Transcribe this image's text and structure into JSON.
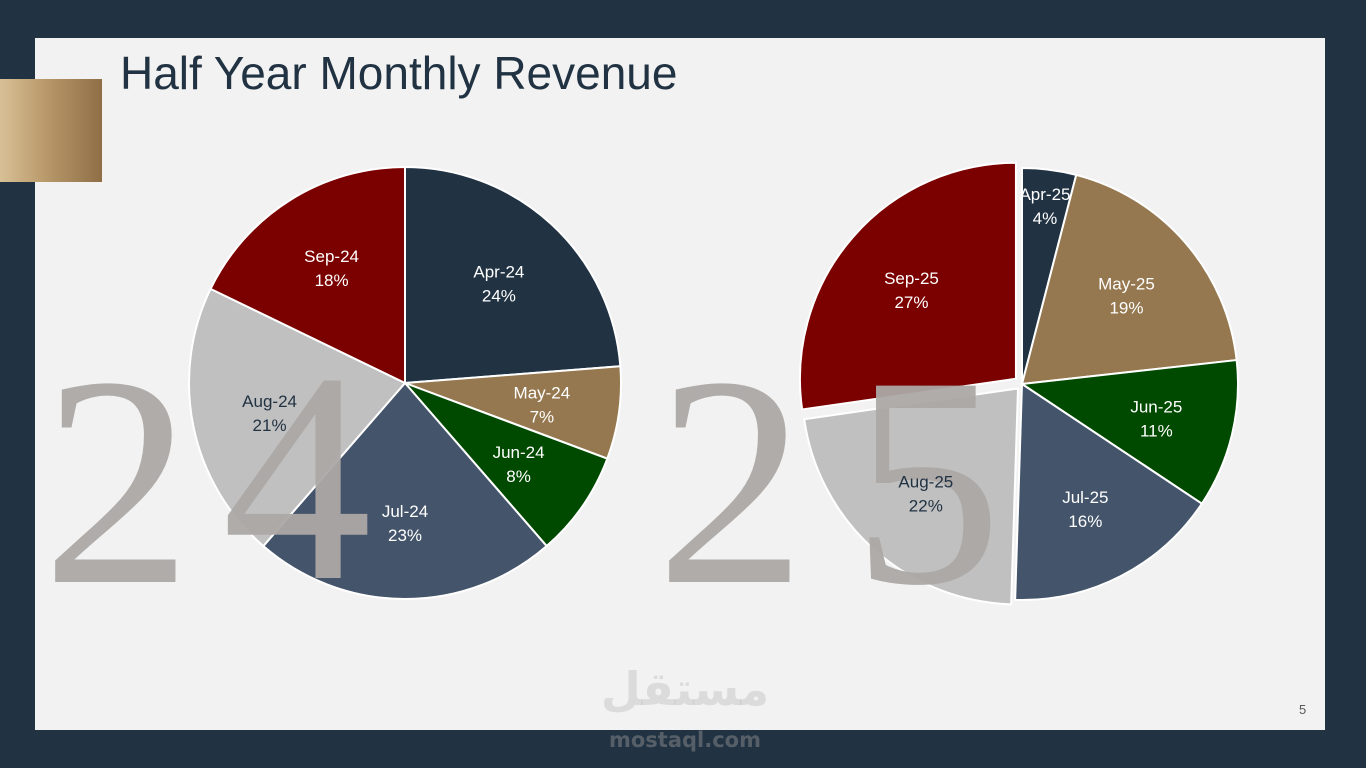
{
  "slide": {
    "title": "Half Year Monthly Revenue",
    "page_number": "5"
  },
  "watermark": {
    "arabic": "مستقل",
    "latin": "mostaql.com"
  },
  "colors": {
    "navy": "#213243",
    "tan": "#95784f",
    "green": "#004a00",
    "slate": "#44546a",
    "light_gray": "#c0c0c0",
    "dark_red": "#7b0000",
    "digit_gray": "#aca8a5",
    "gold_accent": "#b8996a"
  },
  "chart_data": [
    {
      "type": "pie",
      "year_digits": [
        "2",
        "4"
      ],
      "slices": [
        {
          "label": "Apr-24",
          "percent": 24,
          "color": "#213243",
          "text_color": "#ffffff"
        },
        {
          "label": "May-24",
          "percent": 7,
          "color": "#95784f",
          "text_color": "#ffffff"
        },
        {
          "label": "Jun-24",
          "percent": 8,
          "color": "#004a00",
          "text_color": "#ffffff"
        },
        {
          "label": "Jul-24",
          "percent": 23,
          "color": "#44546a",
          "text_color": "#ffffff"
        },
        {
          "label": "Aug-24",
          "percent": 21,
          "color": "#c0c0c0",
          "text_color": "#213243"
        },
        {
          "label": "Sep-24",
          "percent": 18,
          "color": "#7b0000",
          "text_color": "#ffffff"
        }
      ]
    },
    {
      "type": "pie",
      "year_digits": [
        "2",
        "5"
      ],
      "slices": [
        {
          "label": "Apr-25",
          "percent": 4,
          "color": "#213243",
          "text_color": "#ffffff"
        },
        {
          "label": "May-25",
          "percent": 19,
          "color": "#95784f",
          "text_color": "#ffffff"
        },
        {
          "label": "Jun-25",
          "percent": 11,
          "color": "#004a00",
          "text_color": "#ffffff"
        },
        {
          "label": "Jul-25",
          "percent": 16,
          "color": "#44546a",
          "text_color": "#ffffff"
        },
        {
          "label": "Aug-25",
          "percent": 22,
          "color": "#c0c0c0",
          "text_color": "#213243"
        },
        {
          "label": "Sep-25",
          "percent": 27,
          "color": "#7b0000",
          "text_color": "#ffffff"
        }
      ]
    }
  ]
}
